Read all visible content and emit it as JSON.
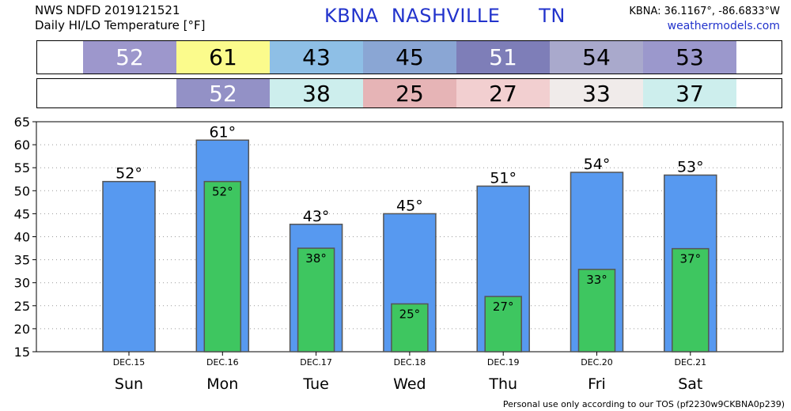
{
  "header": {
    "line1": "NWS NDFD 2019121521",
    "line2": "Daily HI/LO Temperature [°F]",
    "station_title": "KBNA  NASHVILLE      TN",
    "coords": "KBNA: 36.1167°, -86.6833°W",
    "site": "weathermodels.com"
  },
  "hi_strip": [
    {
      "label": "52",
      "color": "#9d97cc"
    },
    {
      "label": "61",
      "color": "#fbfb8c"
    },
    {
      "label": "43",
      "color": "#8ebfe6"
    },
    {
      "label": "45",
      "color": "#8aa6d4"
    },
    {
      "label": "51",
      "color": "#7e7eb8"
    },
    {
      "label": "54",
      "color": "#a9a9cc"
    },
    {
      "label": "53",
      "color": "#9b98cc"
    }
  ],
  "lo_strip": [
    {
      "label": "52",
      "color": "#9391c6"
    },
    {
      "label": "38",
      "color": "#cdeeed"
    },
    {
      "label": "25",
      "color": "#e6b4b6"
    },
    {
      "label": "27",
      "color": "#f2cfd0"
    },
    {
      "label": "33",
      "color": "#f0ebea"
    },
    {
      "label": "37",
      "color": "#cdeeed"
    }
  ],
  "chart_data": {
    "type": "bar",
    "categories": [
      "Sun",
      "Mon",
      "Tue",
      "Wed",
      "Thu",
      "Fri",
      "Sat"
    ],
    "dates": [
      "DEC.15",
      "DEC.16",
      "DEC.17",
      "DEC.18",
      "DEC.19",
      "DEC.20",
      "DEC.21"
    ],
    "series": [
      {
        "name": "",
        "color": "#5799f0",
        "values": [
          52,
          61,
          42.7,
          45,
          51,
          54,
          53.4
        ],
        "labels": [
          "52°",
          "61°",
          "43°",
          "45°",
          "51°",
          "54°",
          "53°"
        ]
      },
      {
        "name": "",
        "color": "#3ec660",
        "values": [
          null,
          52,
          37.5,
          25.4,
          27,
          32.9,
          37.4
        ],
        "labels": [
          "",
          "52°",
          "38°",
          "25°",
          "27°",
          "33°",
          "37°"
        ]
      }
    ],
    "yticks": [
      15,
      20,
      25,
      30,
      35,
      40,
      45,
      50,
      55,
      60,
      65
    ],
    "ylim": [
      15,
      65
    ],
    "grid": true
  },
  "footer": "Personal use only according to our TOS (pf2230w9CKBNA0p239)"
}
